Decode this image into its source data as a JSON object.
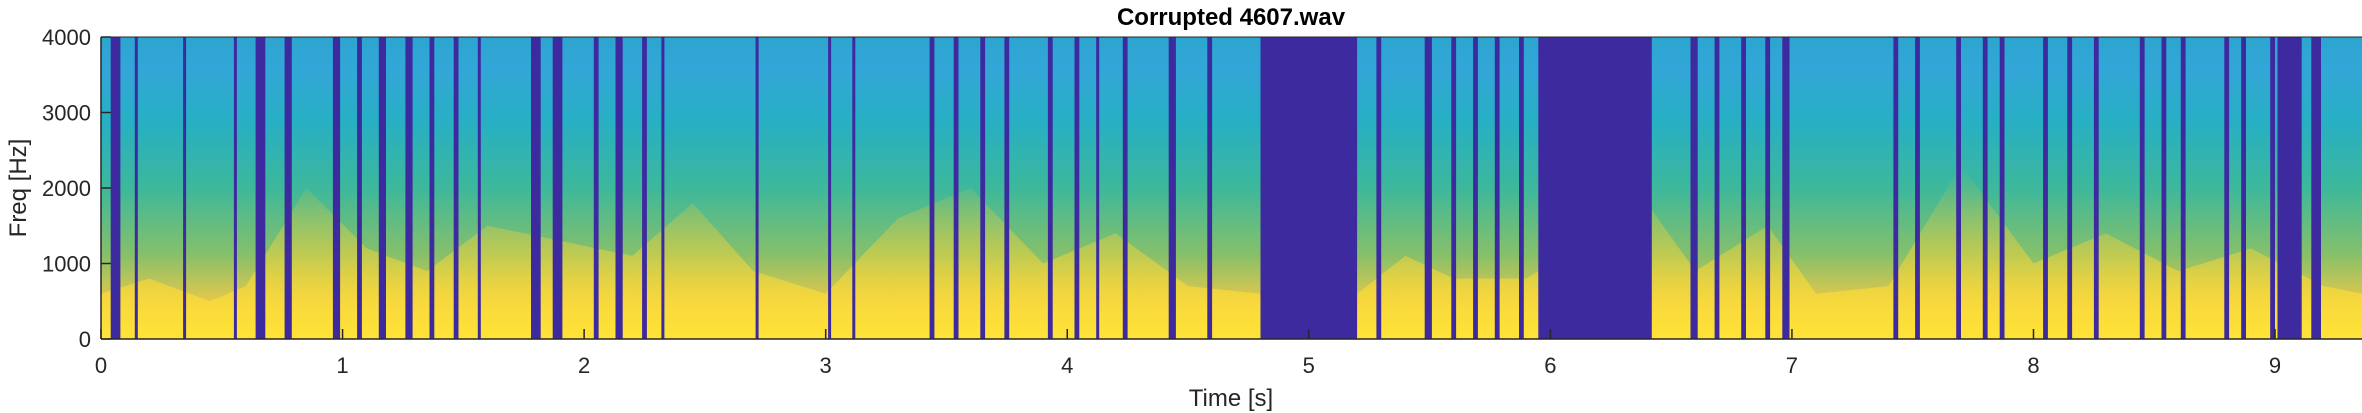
{
  "chart_data": {
    "type": "heatmap",
    "title": "Corrupted 4607.wav",
    "xlabel": "Time [s]",
    "ylabel": "Freq [Hz]",
    "xlim": [
      0,
      9.36
    ],
    "ylim": [
      0,
      4000
    ],
    "xticks": [
      0,
      1,
      2,
      3,
      4,
      5,
      6,
      7,
      8,
      9
    ],
    "yticks": [
      0,
      1000,
      2000,
      3000,
      4000
    ],
    "grid": false,
    "colormap": "parula",
    "colors": {
      "silence": "#3D2A9E",
      "low": "#1FA9C9",
      "mid": "#42B98C",
      "high": "#F5D830",
      "peak": "#FFE83A",
      "axis": "#262626"
    },
    "dropouts_s": [
      [
        0.04,
        0.08
      ],
      [
        0.14,
        0.15
      ],
      [
        0.34,
        0.35
      ],
      [
        0.55,
        0.56
      ],
      [
        0.64,
        0.68
      ],
      [
        0.76,
        0.79
      ],
      [
        0.96,
        0.99
      ],
      [
        1.06,
        1.08
      ],
      [
        1.15,
        1.18
      ],
      [
        1.26,
        1.29
      ],
      [
        1.36,
        1.38
      ],
      [
        1.46,
        1.48
      ],
      [
        1.56,
        1.57
      ],
      [
        1.78,
        1.82
      ],
      [
        1.87,
        1.91
      ],
      [
        2.04,
        2.06
      ],
      [
        2.13,
        2.16
      ],
      [
        2.24,
        2.26
      ],
      [
        2.32,
        2.33
      ],
      [
        2.71,
        2.72
      ],
      [
        3.01,
        3.02
      ],
      [
        3.11,
        3.12
      ],
      [
        3.43,
        3.45
      ],
      [
        3.53,
        3.55
      ],
      [
        3.64,
        3.66
      ],
      [
        3.74,
        3.76
      ],
      [
        3.92,
        3.94
      ],
      [
        4.03,
        4.05
      ],
      [
        4.12,
        4.13
      ],
      [
        4.23,
        4.25
      ],
      [
        4.42,
        4.45
      ],
      [
        4.58,
        4.6
      ],
      [
        4.8,
        5.2
      ],
      [
        5.28,
        5.3
      ],
      [
        5.48,
        5.51
      ],
      [
        5.59,
        5.61
      ],
      [
        5.68,
        5.7
      ],
      [
        5.77,
        5.79
      ],
      [
        5.87,
        5.89
      ],
      [
        5.95,
        6.42
      ],
      [
        6.58,
        6.61
      ],
      [
        6.68,
        6.7
      ],
      [
        6.79,
        6.81
      ],
      [
        6.89,
        6.91
      ],
      [
        6.96,
        6.99
      ],
      [
        7.42,
        7.44
      ],
      [
        7.51,
        7.53
      ],
      [
        7.68,
        7.7
      ],
      [
        7.79,
        7.81
      ],
      [
        7.86,
        7.88
      ],
      [
        8.04,
        8.06
      ],
      [
        8.14,
        8.16
      ],
      [
        8.25,
        8.27
      ],
      [
        8.44,
        8.46
      ],
      [
        8.53,
        8.55
      ],
      [
        8.61,
        8.63
      ],
      [
        8.79,
        8.81
      ],
      [
        8.86,
        8.88
      ],
      [
        8.98,
        9.0
      ],
      [
        9.01,
        9.11
      ],
      [
        9.15,
        9.19
      ]
    ],
    "energy_profile": {
      "t": [
        0,
        0.2,
        0.45,
        0.6,
        0.85,
        1.1,
        1.35,
        1.6,
        1.9,
        2.2,
        2.45,
        2.7,
        3.0,
        3.3,
        3.6,
        3.9,
        4.2,
        4.5,
        4.8,
        5.2,
        5.4,
        5.6,
        5.9,
        6.4,
        6.6,
        6.9,
        7.1,
        7.4,
        7.7,
        8.0,
        8.3,
        8.6,
        8.9,
        9.2,
        9.36
      ],
      "f_hz": [
        600,
        800,
        500,
        700,
        2000,
        1200,
        900,
        1500,
        1300,
        1100,
        1800,
        900,
        600,
        1600,
        2000,
        1000,
        1400,
        700,
        600,
        600,
        1100,
        800,
        800,
        1800,
        900,
        1500,
        600,
        700,
        2300,
        1000,
        1400,
        900,
        1200,
        700,
        600
      ]
    }
  }
}
